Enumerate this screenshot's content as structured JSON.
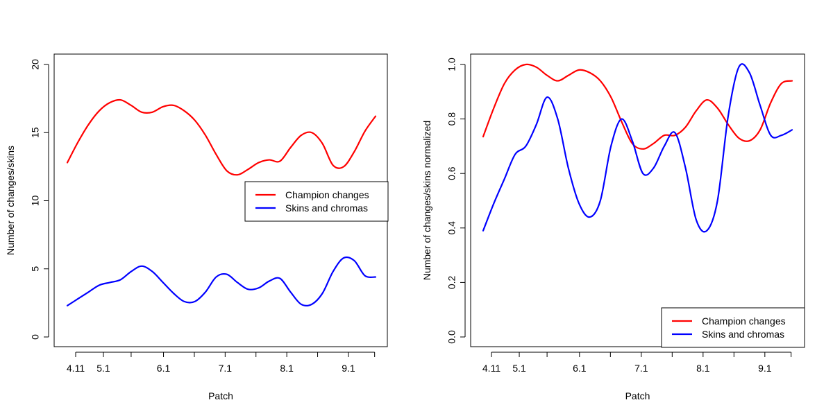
{
  "chart_data": [
    {
      "type": "line",
      "xlabel": "Patch",
      "ylabel": "Number of changes/skins",
      "ylim": [
        0,
        20
      ],
      "yticks": [
        0,
        5,
        10,
        15,
        20
      ],
      "xtick_labels": [
        "4.11",
        "5.1",
        "6.1",
        "7.1",
        "8.1",
        "9.1"
      ],
      "legend_position": "right",
      "series": [
        {
          "name": "Champion changes",
          "color": "#ff0000",
          "values": [
            12.8,
            14.3,
            15.6,
            16.6,
            17.2,
            17.4,
            17.0,
            16.5,
            16.5,
            16.9,
            17.0,
            16.6,
            15.9,
            14.8,
            13.4,
            12.2,
            11.9,
            12.3,
            12.8,
            13.0,
            12.9,
            13.9,
            14.8,
            15.0,
            14.2,
            12.6,
            12.5,
            13.6,
            15.1,
            16.2
          ]
        },
        {
          "name": "Skins and chromas",
          "color": "#0000ff",
          "values": [
            2.3,
            2.8,
            3.3,
            3.8,
            4.0,
            4.2,
            4.8,
            5.2,
            4.8,
            4.0,
            3.2,
            2.6,
            2.6,
            3.3,
            4.4,
            4.6,
            4.0,
            3.5,
            3.6,
            4.1,
            4.3,
            3.3,
            2.4,
            2.4,
            3.2,
            4.8,
            5.8,
            5.6,
            4.5,
            4.4
          ]
        }
      ]
    },
    {
      "type": "line",
      "xlabel": "Patch",
      "ylabel": "Number of changes/skins normalized",
      "ylim": [
        0,
        1
      ],
      "yticks": [
        "0.0",
        "0.2",
        "0.4",
        "0.6",
        "0.8",
        "1.0"
      ],
      "xtick_labels": [
        "4.11",
        "5.1",
        "6.1",
        "7.1",
        "8.1",
        "9.1"
      ],
      "legend_position": "bottom-right",
      "series": [
        {
          "name": "Champion changes",
          "color": "#ff0000",
          "values": [
            0.735,
            0.84,
            0.93,
            0.98,
            1.0,
            0.99,
            0.96,
            0.94,
            0.96,
            0.98,
            0.97,
            0.94,
            0.88,
            0.79,
            0.71,
            0.69,
            0.71,
            0.74,
            0.74,
            0.77,
            0.83,
            0.87,
            0.84,
            0.78,
            0.73,
            0.72,
            0.76,
            0.86,
            0.93,
            0.94
          ]
        },
        {
          "name": "Skins and chromas",
          "color": "#0000ff",
          "values": [
            0.39,
            0.49,
            0.58,
            0.67,
            0.7,
            0.78,
            0.88,
            0.8,
            0.62,
            0.49,
            0.44,
            0.5,
            0.7,
            0.8,
            0.72,
            0.6,
            0.62,
            0.7,
            0.75,
            0.62,
            0.43,
            0.39,
            0.5,
            0.81,
            0.99,
            0.97,
            0.85,
            0.74,
            0.74,
            0.76
          ]
        }
      ]
    }
  ]
}
